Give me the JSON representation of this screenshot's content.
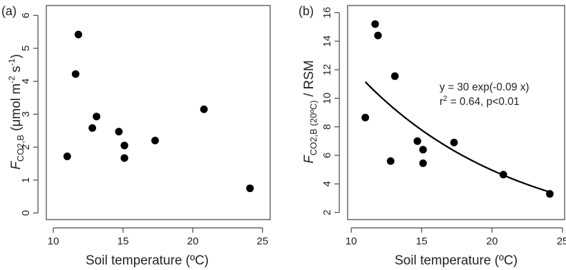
{
  "chart_data": [
    {
      "type": "scatter",
      "panel_label": "(a)",
      "xlabel": "Soil temperature (ºC)",
      "ylabel_parts": {
        "main": "F",
        "sub": "CO2,B",
        "rest": " (μmol m",
        "sup1": "-2",
        "mid": " s",
        "sup2": "-1",
        "end": ")"
      },
      "xlim": [
        9.5,
        25.6
      ],
      "ylim": [
        -0.2,
        6.3
      ],
      "x_ticks": [
        10,
        15,
        20,
        25
      ],
      "y_ticks": [
        0,
        1,
        2,
        3,
        4,
        5,
        6
      ],
      "grid": false,
      "points": [
        {
          "x": 11.0,
          "y": 1.72
        },
        {
          "x": 11.6,
          "y": 4.22
        },
        {
          "x": 11.8,
          "y": 5.42
        },
        {
          "x": 12.8,
          "y": 2.58
        },
        {
          "x": 13.1,
          "y": 2.93
        },
        {
          "x": 14.7,
          "y": 2.47
        },
        {
          "x": 15.1,
          "y": 2.05
        },
        {
          "x": 15.1,
          "y": 1.67
        },
        {
          "x": 17.3,
          "y": 2.2
        },
        {
          "x": 20.8,
          "y": 3.15
        },
        {
          "x": 24.1,
          "y": 0.75
        }
      ]
    },
    {
      "type": "scatter",
      "panel_label": "(b)",
      "xlabel": "Soil temperature (ºC)",
      "ylabel_parts": {
        "main": "F",
        "sub": "CO2,B (20ºC)",
        "rest": " / RSM"
      },
      "xlim": [
        9.5,
        25.2
      ],
      "ylim": [
        1.5,
        16.5
      ],
      "x_ticks": [
        10,
        15,
        20,
        25
      ],
      "y_ticks": [
        2,
        4,
        6,
        8,
        10,
        12,
        14,
        16
      ],
      "grid": false,
      "points": [
        {
          "x": 11.0,
          "y": 8.65
        },
        {
          "x": 11.7,
          "y": 15.2
        },
        {
          "x": 11.9,
          "y": 14.4
        },
        {
          "x": 12.8,
          "y": 5.6
        },
        {
          "x": 13.1,
          "y": 11.55
        },
        {
          "x": 14.7,
          "y": 7.0
        },
        {
          "x": 15.1,
          "y": 6.4
        },
        {
          "x": 15.1,
          "y": 5.45
        },
        {
          "x": 17.3,
          "y": 6.9
        },
        {
          "x": 20.8,
          "y": 4.65
        },
        {
          "x": 24.1,
          "y": 3.3
        }
      ],
      "fit": {
        "a": 30,
        "b": -0.09,
        "x_range": [
          11.0,
          24.1
        ]
      },
      "annotation": {
        "line1": "y = 30 exp(-0.09 x)",
        "line2_pre": "r",
        "line2_sup": "2",
        "line2_post": " = 0.64, p<0.01"
      }
    }
  ]
}
